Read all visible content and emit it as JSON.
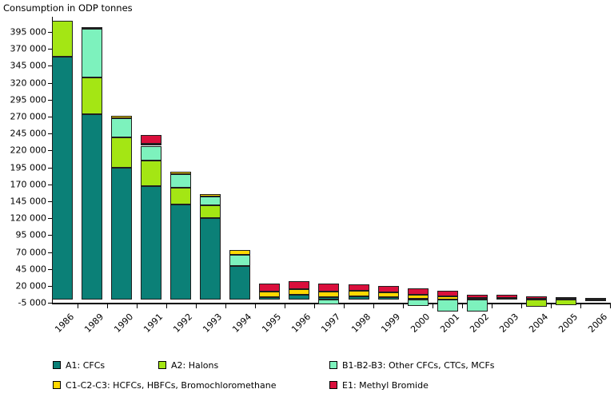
{
  "title": "Consumption in ODP tonnes",
  "chart_data": {
    "type": "bar",
    "stacked": true,
    "title": "Consumption in ODP tonnes",
    "xlabel": "",
    "ylabel": "Consumption in ODP tonnes",
    "grid": false,
    "legend_position": "bottom",
    "ylim": [
      -20000,
      415000
    ],
    "y_ticks": [
      395000,
      370000,
      345000,
      320000,
      295000,
      270000,
      245000,
      220000,
      195000,
      170000,
      145000,
      120000,
      95000,
      70000,
      45000,
      20000,
      -5000
    ],
    "y_tick_labels": [
      "395 000",
      "370 000",
      "345 000",
      "320 000",
      "295 000",
      "270 000",
      "245 000",
      "220 000",
      "195 000",
      "170 000",
      "145 000",
      "120 000",
      "95 000",
      "70 000",
      "45 000",
      "20 000",
      "-5 000"
    ],
    "categories": [
      "1986",
      "1989",
      "1990",
      "1991",
      "1992",
      "1993",
      "1994",
      "1995",
      "1996",
      "1997",
      "1998",
      "1999",
      "2000",
      "2001",
      "2002",
      "2003",
      "2004",
      "2005",
      "2006"
    ],
    "series": [
      {
        "name": "A1: CFCs",
        "color": "#0b8077",
        "values": [
          358000,
          273000,
          195000,
          167000,
          140000,
          120000,
          50000,
          3100,
          7000,
          3500,
          4700,
          3900,
          900,
          0,
          0,
          0,
          0,
          0,
          0
        ]
      },
      {
        "name": "A2: Halons",
        "color": "#a4e614",
        "values": [
          54000,
          55000,
          44000,
          38000,
          25000,
          19500,
          0,
          0,
          0,
          0,
          0,
          0,
          0,
          0,
          0,
          0,
          -11000,
          -8000,
          0
        ]
      },
      {
        "name": "B1-B2-B3: Other CFCs, CTCs, MCFs",
        "color": "#7df2bd",
        "values": [
          0,
          72000,
          29000,
          22000,
          20000,
          12500,
          15500,
          0,
          0,
          -6500,
          0,
          0,
          -9400,
          -17300,
          -17300,
          0,
          0,
          0,
          -2500
        ]
      },
      {
        "name": "C1-C2-C3: HCFCs, HBFCs, Bromochloromethane",
        "color": "#ffd800",
        "values": [
          0,
          2500,
          3000,
          3500,
          3200,
          3500,
          8000,
          9100,
          7800,
          7800,
          8200,
          7100,
          6500,
          4200,
          2400,
          2400,
          1500,
          600,
          400
        ]
      },
      {
        "name": "E1: Methyl Bromide",
        "color": "#da0f3c",
        "values": [
          0,
          0,
          0,
          12000,
          0,
          0,
          0,
          11800,
          11800,
          11800,
          9400,
          8600,
          9400,
          8600,
          5000,
          4700,
          3300,
          2500,
          1500
        ]
      }
    ]
  },
  "legend": {
    "items": [
      {
        "label": "A1: CFCs"
      },
      {
        "label": "A2: Halons"
      },
      {
        "label": "B1-B2-B3: Other CFCs, CTCs, MCFs"
      },
      {
        "label": "C1-C2-C3: HCFCs, HBFCs, Bromochloromethane"
      },
      {
        "label": "E1: Methyl Bromide"
      }
    ]
  }
}
